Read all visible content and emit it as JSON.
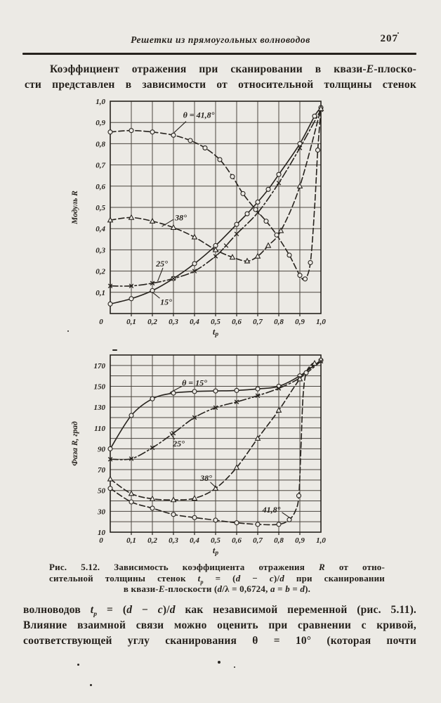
{
  "header": {
    "title": "Решетки из прямоугольных волноводов",
    "page_number": "207"
  },
  "intro": {
    "lines": [
      [
        {
          "t": "Коэффициент отражения при сканировании в квази-"
        },
        {
          "t": "Е",
          "i": 1
        },
        {
          "t": "-плоско-"
        }
      ],
      [
        {
          "t": "сти представлен в зависимости от относительной толщины стенок"
        }
      ]
    ]
  },
  "caption": {
    "lines": [
      [
        {
          "t": "Рис. 5.12. Зависимость коэффициента отражения "
        },
        {
          "t": "R",
          "i": 1
        },
        {
          "t": " от отно-"
        }
      ],
      [
        {
          "t": "сительной толщины стенок "
        },
        {
          "t": "t",
          "i": 1
        },
        {
          "t": "p",
          "i": 1,
          "s": 1
        },
        {
          "t": " = ("
        },
        {
          "t": "d",
          "i": 1
        },
        {
          "t": " − "
        },
        {
          "t": "c",
          "i": 1
        },
        {
          "t": ")/"
        },
        {
          "t": "d",
          "i": 1
        },
        {
          "t": " при сканировании"
        }
      ],
      [
        {
          "t": "в квази-"
        },
        {
          "t": "Е",
          "i": 1
        },
        {
          "t": "-плоскости ("
        },
        {
          "t": "d",
          "i": 1
        },
        {
          "t": "/λ = 0,6724, "
        },
        {
          "t": "a",
          "i": 1
        },
        {
          "t": " = "
        },
        {
          "t": "b",
          "i": 1
        },
        {
          "t": " = "
        },
        {
          "t": "d",
          "i": 1
        },
        {
          "t": ")."
        }
      ]
    ]
  },
  "body": {
    "lines": [
      [
        {
          "t": "волноводов "
        },
        {
          "t": "t",
          "i": 1
        },
        {
          "t": "p",
          "i": 1,
          "s": 1
        },
        {
          "t": " = ("
        },
        {
          "t": "d",
          "i": 1
        },
        {
          "t": " − "
        },
        {
          "t": "c",
          "i": 1
        },
        {
          "t": ")/"
        },
        {
          "t": "d",
          "i": 1
        },
        {
          "t": " как независимой переменной (рис. 5.11)."
        }
      ],
      [
        {
          "t": "Влияние взаимной связи можно оценить при сравнении с кривой,"
        }
      ],
      [
        {
          "t": "соответствующей углу сканирования θ = 10° (которая почти"
        }
      ]
    ]
  },
  "chart_data": [
    {
      "type": "line",
      "title": "",
      "ylabel": "Модуль R",
      "xlabel": [
        {
          "t": "t",
          "i": 1
        },
        {
          "t": "p",
          "i": 1,
          "s": 1
        }
      ],
      "xlim": [
        0,
        1
      ],
      "ylim": [
        0,
        1
      ],
      "xgrid": 0.1,
      "ygrid": 0.1,
      "grid": "on",
      "legend": "none",
      "xticks": [
        {
          "v": 0,
          "l": "0"
        },
        {
          "v": 0.1,
          "l": "0,1"
        },
        {
          "v": 0.2,
          "l": "0,2"
        },
        {
          "v": 0.3,
          "l": "0,3"
        },
        {
          "v": 0.4,
          "l": "0,4"
        },
        {
          "v": 0.5,
          "l": "0,5"
        },
        {
          "v": 0.6,
          "l": "0,6"
        },
        {
          "v": 0.7,
          "l": "0,7"
        },
        {
          "v": 0.8,
          "l": "0,8"
        },
        {
          "v": 0.9,
          "l": "0,9"
        },
        {
          "v": 1,
          "l": "1,0"
        }
      ],
      "yticks": [
        {
          "v": 0.1,
          "l": "0,1"
        },
        {
          "v": 0.2,
          "l": "0,2"
        },
        {
          "v": 0.3,
          "l": "0,3"
        },
        {
          "v": 0.4,
          "l": "0,4"
        },
        {
          "v": 0.5,
          "l": "0,5"
        },
        {
          "v": 0.6,
          "l": "0,6"
        },
        {
          "v": 0.7,
          "l": "0,7"
        },
        {
          "v": 0.8,
          "l": "0,8"
        },
        {
          "v": 0.9,
          "l": "0,9"
        },
        {
          "v": 1,
          "l": "1,0"
        }
      ],
      "series": [
        {
          "name": "θ = 15°",
          "style": "solid",
          "marker": "circle",
          "x": [
            0,
            0.1,
            0.2,
            0.3,
            0.4,
            0.5,
            0.6,
            0.65,
            0.7,
            0.75,
            0.8,
            0.9,
            0.97,
            1.0
          ],
          "y": [
            0.045,
            0.07,
            0.108,
            0.165,
            0.235,
            0.32,
            0.42,
            0.47,
            0.525,
            0.585,
            0.655,
            0.8,
            0.93,
            0.97
          ]
        },
        {
          "name": "25°",
          "style": "dashdot",
          "marker": "x",
          "x": [
            0,
            0.1,
            0.2,
            0.3,
            0.4,
            0.5,
            0.55,
            0.6,
            0.7,
            0.8,
            0.9,
            1.0
          ],
          "y": [
            0.13,
            0.13,
            0.143,
            0.165,
            0.2,
            0.27,
            0.32,
            0.375,
            0.475,
            0.615,
            0.78,
            0.96
          ]
        },
        {
          "name": "38°",
          "style": "dashed",
          "marker": "triangle",
          "x": [
            0,
            0.1,
            0.2,
            0.3,
            0.4,
            0.5,
            0.58,
            0.65,
            0.7,
            0.75,
            0.81,
            0.9,
            1.0
          ],
          "y": [
            0.44,
            0.452,
            0.435,
            0.405,
            0.36,
            0.3,
            0.265,
            0.247,
            0.27,
            0.32,
            0.39,
            0.6,
            0.965
          ]
        },
        {
          "name": "θ = 41,8°",
          "style": "dashed",
          "marker": "circle",
          "x": [
            0,
            0.1,
            0.2,
            0.3,
            0.38,
            0.45,
            0.52,
            0.58,
            0.63,
            0.69,
            0.74,
            0.79,
            0.85,
            0.9,
            0.925,
            0.95,
            0.97,
            0.985,
            1.0
          ],
          "y": [
            0.855,
            0.862,
            0.855,
            0.84,
            0.815,
            0.78,
            0.725,
            0.645,
            0.565,
            0.49,
            0.435,
            0.37,
            0.275,
            0.18,
            0.163,
            0.24,
            0.5,
            0.77,
            0.96
          ],
          "mx": [
            0,
            0.1,
            0.2,
            0.3,
            0.38,
            0.45,
            0.52,
            0.58,
            0.63,
            0.69,
            0.74,
            0.79,
            0.85,
            0.9,
            0.925,
            0.95,
            0.985
          ],
          "my": [
            0.855,
            0.862,
            0.855,
            0.84,
            0.815,
            0.78,
            0.725,
            0.645,
            0.565,
            0.49,
            0.435,
            0.37,
            0.275,
            0.18,
            0.163,
            0.24,
            0.77
          ]
        }
      ],
      "annotations": [
        {
          "text": "θ = 41,8°",
          "x": 0.42,
          "y": 0.935,
          "leader": [
            [
              0.36,
              0.905
            ],
            [
              0.303,
              0.852
            ]
          ]
        },
        {
          "text": "38°",
          "x": 0.335,
          "y": 0.452,
          "leader": [
            [
              0.3,
              0.443
            ],
            [
              0.245,
              0.41
            ]
          ]
        },
        {
          "text": "25°",
          "x": 0.245,
          "y": 0.235,
          "leader": [
            [
              0.25,
              0.215
            ],
            [
              0.225,
              0.152
            ]
          ]
        },
        {
          "text": "15°",
          "x": 0.265,
          "y": 0.055,
          "leader": [
            [
              0.235,
              0.072
            ],
            [
              0.198,
              0.102
            ]
          ]
        }
      ]
    },
    {
      "type": "line",
      "title": "",
      "ylabel": "Фаза R, град",
      "xlabel": [
        {
          "t": "t",
          "i": 1
        },
        {
          "t": "p",
          "i": 1,
          "s": 1
        }
      ],
      "xlim": [
        0,
        1
      ],
      "ylim": [
        10,
        180
      ],
      "xgrid": 0.1,
      "ygrid": 10,
      "grid": "on",
      "legend": "none",
      "xticks": [
        {
          "v": 0,
          "l": "0"
        },
        {
          "v": 0.1,
          "l": "0,1"
        },
        {
          "v": 0.2,
          "l": "0,2"
        },
        {
          "v": 0.3,
          "l": "0,3"
        },
        {
          "v": 0.4,
          "l": "0,4"
        },
        {
          "v": 0.5,
          "l": "0,5"
        },
        {
          "v": 0.6,
          "l": "0,6"
        },
        {
          "v": 0.7,
          "l": "0,7"
        },
        {
          "v": 0.8,
          "l": "0,8"
        },
        {
          "v": 0.9,
          "l": "0,9"
        },
        {
          "v": 1,
          "l": "1,0"
        }
      ],
      "yticks": [
        {
          "v": 10,
          "l": "10"
        },
        {
          "v": 30,
          "l": "30"
        },
        {
          "v": 50,
          "l": "50"
        },
        {
          "v": 70,
          "l": "70"
        },
        {
          "v": 90,
          "l": "90"
        },
        {
          "v": 110,
          "l": "110"
        },
        {
          "v": 130,
          "l": "130"
        },
        {
          "v": 150,
          "l": "150"
        },
        {
          "v": 170,
          "l": "170"
        }
      ],
      "series": [
        {
          "name": "θ = 15°",
          "style": "solid",
          "marker": "circle",
          "x": [
            0,
            0.1,
            0.2,
            0.3,
            0.4,
            0.5,
            0.6,
            0.7,
            0.8,
            0.9,
            1.0
          ],
          "y": [
            90,
            122,
            138,
            143.5,
            145,
            145.5,
            146,
            147.5,
            150,
            160,
            175
          ]
        },
        {
          "name": "25°",
          "style": "dashdot",
          "marker": "x",
          "x": [
            0,
            0.1,
            0.2,
            0.3,
            0.4,
            0.5,
            0.6,
            0.7,
            0.8,
            0.9,
            1.0
          ],
          "y": [
            80,
            80.5,
            91,
            105,
            120,
            129.5,
            135,
            141,
            148,
            158,
            174
          ]
        },
        {
          "name": "38°",
          "style": "dashed",
          "marker": "triangle",
          "x": [
            0,
            0.1,
            0.2,
            0.3,
            0.4,
            0.5,
            0.6,
            0.7,
            0.8,
            0.9,
            0.97
          ],
          "y": [
            61,
            47,
            42,
            41,
            42.5,
            52,
            72,
            100,
            127,
            157,
            172
          ]
        },
        {
          "name": "θ = 41,8°",
          "style": "dashed",
          "marker": "circle",
          "x": [
            0,
            0.1,
            0.2,
            0.3,
            0.4,
            0.5,
            0.6,
            0.7,
            0.8,
            0.85,
            0.88,
            0.895,
            0.905,
            0.915,
            0.93,
            0.96
          ],
          "y": [
            52,
            39,
            33,
            27,
            24,
            21.5,
            19,
            17.5,
            17.5,
            22,
            31,
            45,
            90,
            140,
            163,
            172
          ],
          "mx": [
            0,
            0.1,
            0.2,
            0.3,
            0.4,
            0.5,
            0.6,
            0.7,
            0.8,
            0.85,
            0.895,
            0.93
          ],
          "my": [
            52,
            39,
            33,
            27,
            24,
            21.5,
            19,
            17.5,
            17.5,
            22,
            45,
            163
          ]
        }
      ],
      "annotations": [
        {
          "text": "θ = 15°",
          "x": 0.4,
          "y": 153.5,
          "leader": [
            [
              0.34,
              150
            ],
            [
              0.283,
              143.8
            ]
          ]
        },
        {
          "text": "25°",
          "x": 0.325,
          "y": 95,
          "leader": [
            [
              0.305,
              99
            ],
            [
              0.283,
              106
            ]
          ]
        },
        {
          "text": "38°",
          "x": 0.455,
          "y": 62,
          "leader": [
            [
              0.475,
              58
            ],
            [
              0.502,
              52.8
            ]
          ]
        },
        {
          "text": "41,8°",
          "x": 0.765,
          "y": 31.5,
          "leader": [
            [
              0.815,
              29
            ],
            [
              0.86,
              22.8
            ]
          ]
        }
      ]
    }
  ]
}
